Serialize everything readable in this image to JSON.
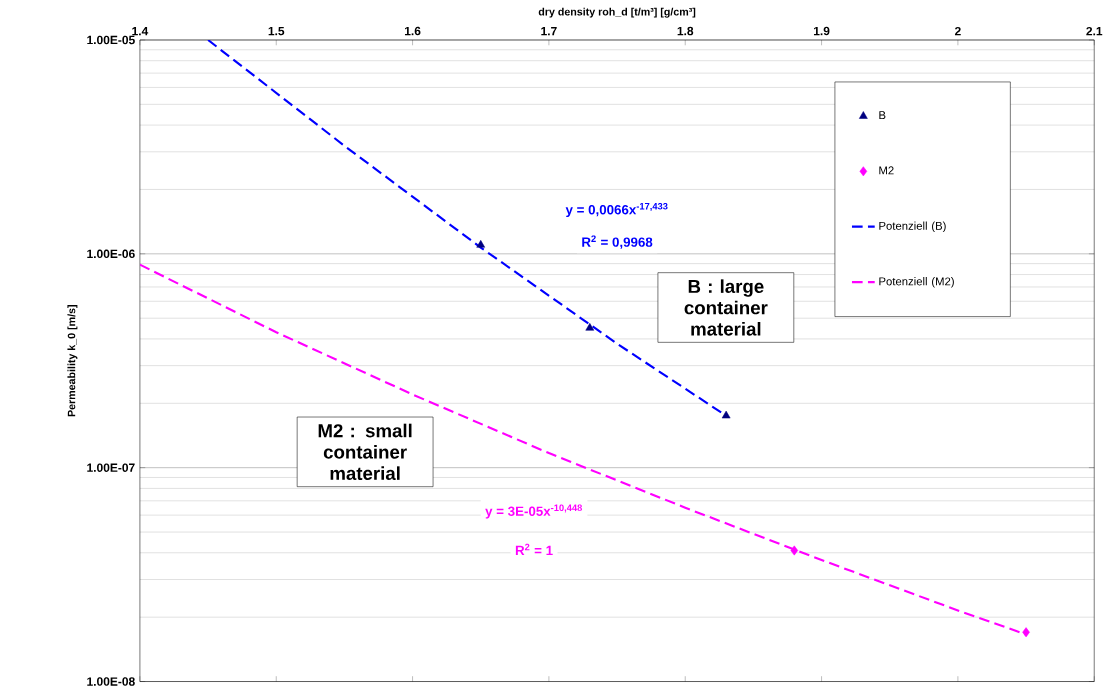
{
  "chart_data": {
    "type": "scatter",
    "xlabel": "dry density roh_d [t/m³] [g/cm³]",
    "ylabel": "Permeability k_0 [m/s]",
    "xlim": [
      1.4,
      2.1
    ],
    "xticks": [
      1.4,
      1.5,
      1.6,
      1.7,
      1.8,
      1.9,
      2,
      2.1
    ],
    "ylim": [
      1e-08,
      1e-05
    ],
    "yticks": [
      {
        "value": 1e-08,
        "label": "1.00E-08"
      },
      {
        "value": 1e-07,
        "label": "1.00E-07"
      },
      {
        "value": 1e-06,
        "label": "1.00E-06"
      },
      {
        "value": 1e-05,
        "label": "1.00E-05"
      }
    ],
    "log": "y",
    "grid": "y",
    "legend": "right",
    "series": [
      {
        "name": "B",
        "marker": "triangle",
        "color": "#000080",
        "x": [
          1.65,
          1.73,
          1.83
        ],
        "values": [
          1.1e-06,
          4.5e-07,
          1.75e-07
        ]
      },
      {
        "name": "M2",
        "marker": "diamond",
        "color": "#ff00ff",
        "x": [
          1.88,
          2.05
        ],
        "values": [
          4.1e-08,
          1.7e-08
        ]
      },
      {
        "name": "Potenziell (B)",
        "type": "line",
        "line_style": "dashed",
        "color": "#0000ff",
        "x": [
          1.45,
          1.55,
          1.65,
          1.75,
          1.83
        ],
        "values": [
          1e-05,
          3.2e-06,
          1.07e-06,
          3.8e-07,
          1.75e-07
        ]
      },
      {
        "name": "Potenziell (M2)",
        "type": "line",
        "line_style": "dashed",
        "color": "#ff00ff",
        "x": [
          1.4,
          1.5,
          1.6,
          1.7,
          1.8,
          1.9,
          2.0,
          2.05
        ],
        "values": [
          8.9e-07,
          4.3e-07,
          2.2e-07,
          1.17e-07,
          6.5e-08,
          3.7e-08,
          2.15e-08,
          1.66e-08
        ]
      }
    ],
    "annotations": [
      "y = 0,0066x$^{-17,433}$",
      "R$^{2}$ = 0,9968",
      "y = 3E-05x$^{-10,448}$",
      "R$^{2}$ = 1",
      "B : large container material",
      "M2 : small container material"
    ]
  }
}
